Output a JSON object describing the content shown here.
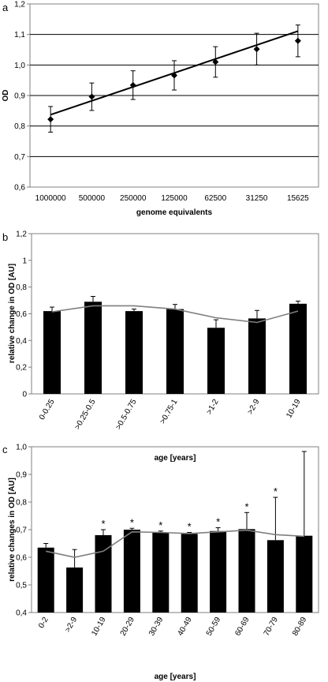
{
  "chart_data": [
    {
      "panel": "a",
      "type": "line",
      "categories": [
        "1000000",
        "500000",
        "250000",
        "125000",
        "62500",
        "31250",
        "15625"
      ],
      "series": [
        {
          "values": [
            0.822,
            0.896,
            0.934,
            0.966,
            1.01,
            1.052,
            1.079
          ],
          "errors": [
            0.042,
            0.045,
            0.047,
            0.048,
            0.05,
            0.052,
            0.052
          ]
        }
      ],
      "trendline": [
        0.837,
        1.111
      ],
      "xlabel": "genome equivalents",
      "ylabel": "OD",
      "ylim": [
        0.6,
        1.2
      ],
      "yticks": [
        "0,6",
        "0,7",
        "0,8",
        "0,9",
        "1,0",
        "1,1",
        "1,2"
      ],
      "grid": true
    },
    {
      "panel": "b",
      "type": "bar",
      "categories": [
        "0-0.25",
        ">0.25-0.5",
        ">0.5-0.75",
        ">0.75-1",
        ">1-2",
        ">2-9",
        "10-19"
      ],
      "series": [
        {
          "values": [
            0.62,
            0.69,
            0.62,
            0.635,
            0.495,
            0.565,
            0.675
          ],
          "errors": [
            0.03,
            0.04,
            0.015,
            0.035,
            0.06,
            0.06,
            0.02
          ]
        }
      ],
      "trendline": [
        0.615,
        0.66,
        0.66,
        0.635,
        0.57,
        0.535,
        0.62
      ],
      "xlabel": "age [years]",
      "ylabel": "relative change in OD [AU]",
      "ylim": [
        0,
        1.2
      ],
      "yticks": [
        "0",
        "0,2",
        "0,4",
        "0,6",
        "0,8",
        "1",
        "1,2"
      ],
      "grid": false
    },
    {
      "panel": "c",
      "type": "bar",
      "categories": [
        "0-2",
        ">2-9",
        "10-19",
        "20-29",
        "30-39",
        "40-49",
        "50-59",
        "60-69",
        "70-79",
        "80-89"
      ],
      "series": [
        {
          "values": [
            0.635,
            0.563,
            0.68,
            0.7,
            0.69,
            0.685,
            0.695,
            0.702,
            0.662,
            0.678
          ],
          "errors": [
            0.015,
            0.065,
            0.02,
            0.005,
            0.005,
            0.005,
            0.012,
            0.06,
            0.155,
            0.305
          ]
        }
      ],
      "trendline": [
        0.622,
        0.6,
        0.622,
        0.692,
        0.69,
        0.686,
        0.692,
        0.698,
        0.682,
        0.676
      ],
      "significance": [
        "",
        "",
        "*",
        "*",
        "*",
        "*",
        "*",
        "*",
        "*",
        ""
      ],
      "xlabel": "age [years]",
      "ylabel": "relative changes in OD [AU]",
      "ylim": [
        0.4,
        1.0
      ],
      "yticks": [
        "0,4",
        "0,5",
        "0,6",
        "0,7",
        "0,8",
        "0,9",
        "1,0"
      ],
      "grid": false
    }
  ]
}
